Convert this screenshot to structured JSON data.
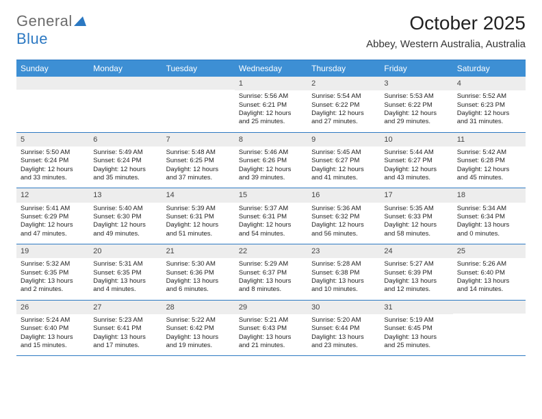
{
  "logo": {
    "general": "General",
    "blue": "Blue"
  },
  "title": "October 2025",
  "subtitle": "Abbey, Western Australia, Australia",
  "colors": {
    "accent": "#3d8fd4",
    "border": "#2b78c2",
    "daynum_bg": "#ededed"
  },
  "daynames": [
    "Sunday",
    "Monday",
    "Tuesday",
    "Wednesday",
    "Thursday",
    "Friday",
    "Saturday"
  ],
  "month": {
    "first_weekday": 3,
    "num_days": 31
  },
  "days": {
    "1": {
      "sunrise": "5:56 AM",
      "sunset": "6:21 PM",
      "daylight": "12 hours and 25 minutes."
    },
    "2": {
      "sunrise": "5:54 AM",
      "sunset": "6:22 PM",
      "daylight": "12 hours and 27 minutes."
    },
    "3": {
      "sunrise": "5:53 AM",
      "sunset": "6:22 PM",
      "daylight": "12 hours and 29 minutes."
    },
    "4": {
      "sunrise": "5:52 AM",
      "sunset": "6:23 PM",
      "daylight": "12 hours and 31 minutes."
    },
    "5": {
      "sunrise": "5:50 AM",
      "sunset": "6:24 PM",
      "daylight": "12 hours and 33 minutes."
    },
    "6": {
      "sunrise": "5:49 AM",
      "sunset": "6:24 PM",
      "daylight": "12 hours and 35 minutes."
    },
    "7": {
      "sunrise": "5:48 AM",
      "sunset": "6:25 PM",
      "daylight": "12 hours and 37 minutes."
    },
    "8": {
      "sunrise": "5:46 AM",
      "sunset": "6:26 PM",
      "daylight": "12 hours and 39 minutes."
    },
    "9": {
      "sunrise": "5:45 AM",
      "sunset": "6:27 PM",
      "daylight": "12 hours and 41 minutes."
    },
    "10": {
      "sunrise": "5:44 AM",
      "sunset": "6:27 PM",
      "daylight": "12 hours and 43 minutes."
    },
    "11": {
      "sunrise": "5:42 AM",
      "sunset": "6:28 PM",
      "daylight": "12 hours and 45 minutes."
    },
    "12": {
      "sunrise": "5:41 AM",
      "sunset": "6:29 PM",
      "daylight": "12 hours and 47 minutes."
    },
    "13": {
      "sunrise": "5:40 AM",
      "sunset": "6:30 PM",
      "daylight": "12 hours and 49 minutes."
    },
    "14": {
      "sunrise": "5:39 AM",
      "sunset": "6:31 PM",
      "daylight": "12 hours and 51 minutes."
    },
    "15": {
      "sunrise": "5:37 AM",
      "sunset": "6:31 PM",
      "daylight": "12 hours and 54 minutes."
    },
    "16": {
      "sunrise": "5:36 AM",
      "sunset": "6:32 PM",
      "daylight": "12 hours and 56 minutes."
    },
    "17": {
      "sunrise": "5:35 AM",
      "sunset": "6:33 PM",
      "daylight": "12 hours and 58 minutes."
    },
    "18": {
      "sunrise": "5:34 AM",
      "sunset": "6:34 PM",
      "daylight": "13 hours and 0 minutes."
    },
    "19": {
      "sunrise": "5:32 AM",
      "sunset": "6:35 PM",
      "daylight": "13 hours and 2 minutes."
    },
    "20": {
      "sunrise": "5:31 AM",
      "sunset": "6:35 PM",
      "daylight": "13 hours and 4 minutes."
    },
    "21": {
      "sunrise": "5:30 AM",
      "sunset": "6:36 PM",
      "daylight": "13 hours and 6 minutes."
    },
    "22": {
      "sunrise": "5:29 AM",
      "sunset": "6:37 PM",
      "daylight": "13 hours and 8 minutes."
    },
    "23": {
      "sunrise": "5:28 AM",
      "sunset": "6:38 PM",
      "daylight": "13 hours and 10 minutes."
    },
    "24": {
      "sunrise": "5:27 AM",
      "sunset": "6:39 PM",
      "daylight": "13 hours and 12 minutes."
    },
    "25": {
      "sunrise": "5:26 AM",
      "sunset": "6:40 PM",
      "daylight": "13 hours and 14 minutes."
    },
    "26": {
      "sunrise": "5:24 AM",
      "sunset": "6:40 PM",
      "daylight": "13 hours and 15 minutes."
    },
    "27": {
      "sunrise": "5:23 AM",
      "sunset": "6:41 PM",
      "daylight": "13 hours and 17 minutes."
    },
    "28": {
      "sunrise": "5:22 AM",
      "sunset": "6:42 PM",
      "daylight": "13 hours and 19 minutes."
    },
    "29": {
      "sunrise": "5:21 AM",
      "sunset": "6:43 PM",
      "daylight": "13 hours and 21 minutes."
    },
    "30": {
      "sunrise": "5:20 AM",
      "sunset": "6:44 PM",
      "daylight": "13 hours and 23 minutes."
    },
    "31": {
      "sunrise": "5:19 AM",
      "sunset": "6:45 PM",
      "daylight": "13 hours and 25 minutes."
    }
  },
  "labels": {
    "sunrise": "Sunrise:",
    "sunset": "Sunset:",
    "daylight": "Daylight:"
  }
}
